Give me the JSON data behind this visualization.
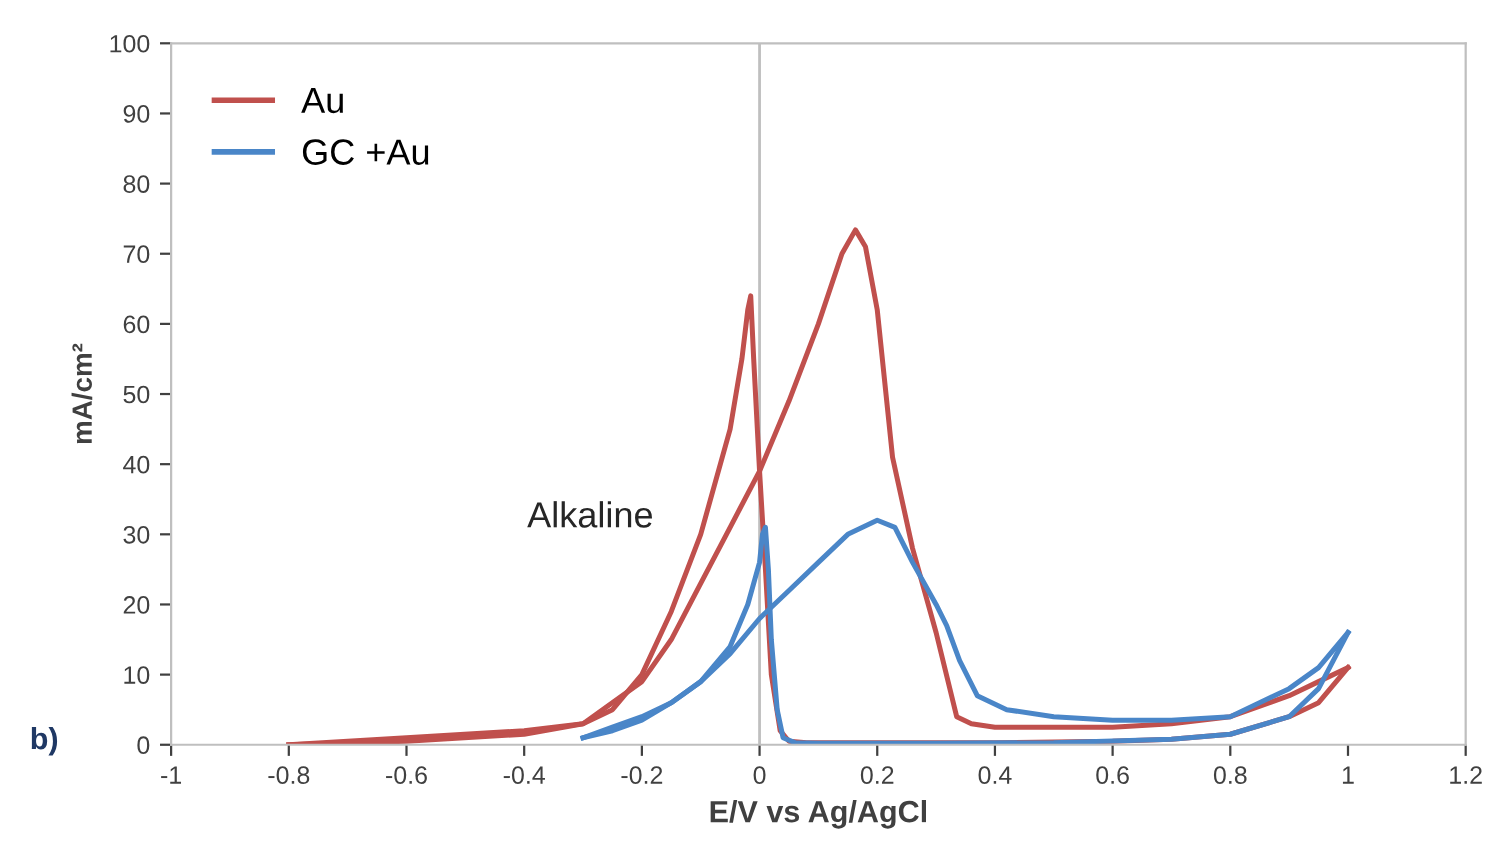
{
  "chart_data": {
    "type": "line",
    "xlabel": "E/V vs Ag/AgCl",
    "ylabel": "mA/cm²",
    "xlim": [
      -1,
      1.2
    ],
    "ylim": [
      0,
      100
    ],
    "xticks": [
      -1,
      -0.8,
      -0.6,
      -0.4,
      -0.2,
      0,
      0.2,
      0.4,
      0.6,
      0.8,
      1,
      1.2
    ],
    "yticks": [
      0,
      10,
      20,
      30,
      40,
      50,
      60,
      70,
      80,
      90,
      100
    ],
    "grid": false,
    "legend": "top left",
    "marker": "none",
    "line_style": "solid",
    "ref_lines": [
      {
        "axis": "x",
        "value": 0,
        "color": "#bfbfbf"
      }
    ],
    "annotations": [
      "Alkaline",
      "b)"
    ],
    "series": [
      {
        "name": "Au",
        "color": "#c0504d",
        "x": [
          -0.8,
          -0.6,
          -0.4,
          -0.3,
          -0.2,
          -0.15,
          -0.1,
          -0.05,
          0,
          0.05,
          0.1,
          0.14,
          0.163,
          0.18,
          0.2,
          0.226,
          0.26,
          0.3,
          0.335,
          0.36,
          0.4,
          0.5,
          0.6,
          0.7,
          0.8,
          0.9,
          0.95,
          1
        ],
        "values": [
          0,
          1,
          2,
          3,
          9,
          15,
          23,
          31,
          39,
          49,
          60,
          70,
          73.4,
          71,
          62,
          41,
          28,
          16,
          4,
          3,
          2.5,
          2.5,
          2.5,
          3,
          4,
          7,
          9,
          11
        ]
      },
      {
        "color": "#c0504d",
        "x": [
          -0.8,
          -0.6,
          -0.4,
          -0.3,
          -0.25,
          -0.2,
          -0.15,
          -0.1,
          -0.05,
          -0.03,
          -0.02,
          -0.015,
          -0.01,
          0,
          0.01,
          0.02,
          0.035,
          0.05,
          0.08,
          0.2,
          0.4,
          0.6,
          0.7,
          0.8,
          0.9,
          0.95,
          1
        ],
        "values": [
          0,
          0.5,
          1.5,
          3,
          5,
          10,
          19,
          30,
          45,
          55,
          62,
          64,
          55,
          39,
          25,
          10,
          2,
          0.5,
          0.3,
          0.3,
          0.3,
          0.5,
          0.8,
          1.5,
          4,
          6,
          11
        ]
      },
      {
        "name": "GC +Au",
        "color": "#4a86c8",
        "x": [
          -0.3,
          -0.25,
          -0.2,
          -0.15,
          -0.1,
          -0.05,
          0,
          0.05,
          0.1,
          0.15,
          0.2,
          0.23,
          0.26,
          0.3,
          0.318,
          0.34,
          0.37,
          0.42,
          0.5,
          0.6,
          0.7,
          0.8,
          0.9,
          0.95,
          1
        ],
        "values": [
          1,
          2,
          3.5,
          6,
          9,
          13,
          18,
          22,
          26,
          30,
          32,
          31,
          26,
          20,
          17,
          12,
          7,
          5,
          4,
          3.5,
          3.5,
          4,
          8,
          11,
          16
        ]
      },
      {
        "color": "#4a86c8",
        "x": [
          -0.3,
          -0.25,
          -0.2,
          -0.15,
          -0.1,
          -0.05,
          -0.02,
          0,
          0.005,
          0.01,
          0.015,
          0.02,
          0.03,
          0.04,
          0.06,
          0.1,
          0.3,
          0.5,
          0.7,
          0.8,
          0.9,
          0.95,
          1
        ],
        "values": [
          1,
          2.5,
          4,
          6,
          9,
          14,
          20,
          26,
          30,
          31,
          25,
          15,
          5,
          1,
          0.3,
          0.2,
          0.2,
          0.3,
          0.8,
          1.5,
          4,
          8,
          16
        ]
      }
    ]
  }
}
